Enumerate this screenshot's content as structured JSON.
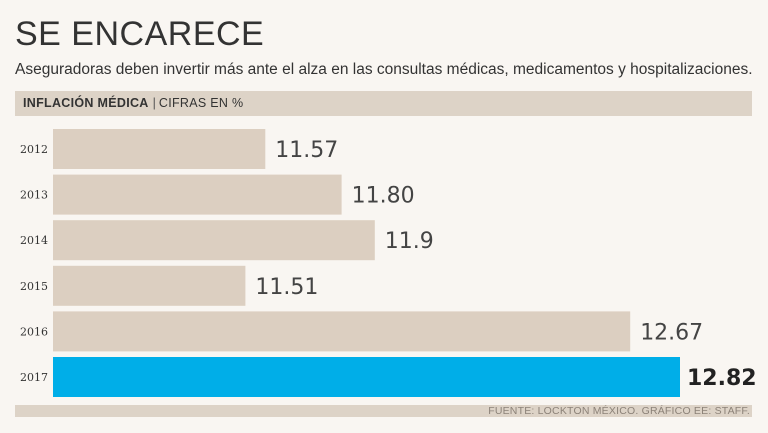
{
  "title": "SE ENCARECE",
  "subtitle": "Aseguradoras deben invertir más ante el alza en las consultas médicas, medicamentos y hospitalizaciones.",
  "header": {
    "label": "INFLACIÓN MÉDICA",
    "separator": "|",
    "unit": "CIFRAS EN %"
  },
  "footer": {
    "source": "FUENTE: LOCKTON MÉXICO.  GRÁFICO EE: STAFF."
  },
  "colors": {
    "bar": "#dccfc1",
    "highlight": "#00aee8",
    "band": "#ddd3c7",
    "background": "#f9f6f2"
  },
  "chart_data": {
    "type": "bar",
    "orientation": "horizontal",
    "categories": [
      "2012",
      "2013",
      "2014",
      "2015",
      "2016",
      "2017"
    ],
    "values": [
      11.57,
      11.8,
      11.9,
      11.51,
      12.67,
      12.82
    ],
    "value_labels": [
      "11.57",
      "11.80",
      "11.9",
      "11.51",
      "12.67",
      "12.82"
    ],
    "highlight_category": "2017",
    "title": "INFLACIÓN MÉDICA",
    "xlabel": "",
    "ylabel": "",
    "xlim": [
      10.93,
      12.82
    ]
  }
}
